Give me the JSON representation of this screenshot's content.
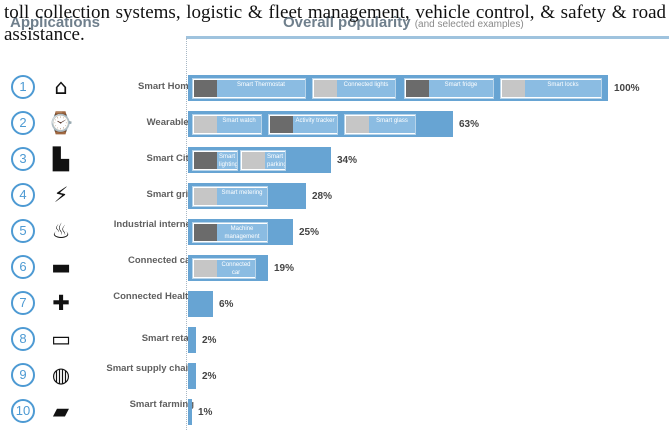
{
  "overlay": {
    "text": "toll collection systems, logistic & fleet management, vehicle control, & safety & road assistance."
  },
  "header": {
    "applications": "Applications",
    "overall_popularity": "Overall popularity",
    "popularity_note": "(and selected examples)"
  },
  "colors": {
    "bar": "#67a4d3",
    "number_circle": "#4d9ad3",
    "example_label": "#8bbce2",
    "header_rule": "#9fc3de"
  },
  "rows": [
    {
      "number": "1",
      "icon": "house-icon",
      "label": "Smart Home",
      "popularity_percent": 100,
      "pct_label": "100%",
      "examples": [
        "Smart Thermostat",
        "Connected lights",
        "Smart fridge",
        "Smart locks"
      ]
    },
    {
      "number": "2",
      "icon": "watch-icon",
      "label": "Wearables",
      "popularity_percent": 63,
      "pct_label": "63%",
      "examples": [
        "Smart watch",
        "Activity tracker",
        "Smart glass"
      ]
    },
    {
      "number": "3",
      "icon": "city-icon",
      "label": "Smart City",
      "popularity_percent": 34,
      "pct_label": "34%",
      "examples": [
        "Smart lighting",
        "Smart parking"
      ]
    },
    {
      "number": "4",
      "icon": "plug-icon",
      "label": "Smart grid",
      "popularity_percent": 28,
      "pct_label": "28%",
      "examples": [
        "Smart metering"
      ]
    },
    {
      "number": "5",
      "icon": "factory-icon",
      "label": "Industrial internet",
      "popularity_percent": 25,
      "pct_label": "25%",
      "examples": [
        "Machine management"
      ]
    },
    {
      "number": "6",
      "icon": "car-icon",
      "label": "Connected car",
      "popularity_percent": 19,
      "pct_label": "19%",
      "examples": [
        "Connected car"
      ]
    },
    {
      "number": "7",
      "icon": "medical-bag-icon",
      "label": "Connected Health",
      "popularity_percent": 6,
      "pct_label": "6%",
      "examples": []
    },
    {
      "number": "8",
      "icon": "shopping-cart-icon",
      "label": "Smart retail",
      "popularity_percent": 2,
      "pct_label": "2%",
      "examples": []
    },
    {
      "number": "9",
      "icon": "globe-network-icon",
      "label": "Smart supply chain",
      "popularity_percent": 2,
      "pct_label": "2%",
      "examples": []
    },
    {
      "number": "10",
      "icon": "cow-icon",
      "label": "Smart farming",
      "popularity_percent": 1,
      "pct_label": "1%",
      "examples": []
    }
  ]
}
